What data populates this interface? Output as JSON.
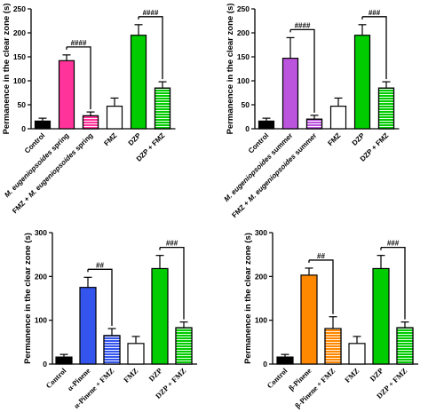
{
  "patterns": {
    "hatch_color": "#ffffff"
  },
  "chart_data": [
    {
      "type": "bar",
      "panel": "top-left",
      "ylabel": "Permanence in the clear zone (s)",
      "ylim": [
        0,
        250
      ],
      "yticks": [
        0,
        50,
        100,
        150,
        200,
        250
      ],
      "categories": [
        "Control",
        "M. eugeniopsoides spring",
        "FMZ + M. eugeniopsoides spring",
        "FMZ",
        "DZP",
        "DZP + FMZ"
      ],
      "category_italic_parts": [
        "",
        "M. eugeniopsoides",
        "M. eugeniopsoides",
        "",
        "",
        ""
      ],
      "values": [
        16,
        142,
        27,
        47,
        195,
        85
      ],
      "errors": [
        6,
        12,
        8,
        17,
        22,
        13
      ],
      "colors": [
        "#000000",
        "#ff3399",
        "#ff3399",
        "#ffffff",
        "#00cc00",
        "#00cc00"
      ],
      "hatched": [
        false,
        false,
        true,
        false,
        false,
        true
      ],
      "significance": [
        {
          "from": 1,
          "to": 2,
          "label": "####"
        },
        {
          "from": 4,
          "to": 5,
          "label": "####"
        }
      ]
    },
    {
      "type": "bar",
      "panel": "top-right",
      "ylabel": "Permanence in the clear zone (s)",
      "ylim": [
        0,
        250
      ],
      "yticks": [
        0,
        50,
        100,
        150,
        200,
        250
      ],
      "categories": [
        "Control",
        "M. eugeniopsoides summer",
        "FMZ + M. eugeniopsoides summer",
        "FMZ",
        "DZP",
        "DZP + FMZ"
      ],
      "category_italic_parts": [
        "",
        "M. eugeniopsoides",
        "M. eugeniopsoides",
        "",
        "",
        ""
      ],
      "values": [
        16,
        147,
        20,
        47,
        195,
        85
      ],
      "errors": [
        6,
        43,
        8,
        17,
        22,
        13
      ],
      "colors": [
        "#000000",
        "#bb55dd",
        "#bb55dd",
        "#ffffff",
        "#00cc00",
        "#00cc00"
      ],
      "hatched": [
        false,
        false,
        true,
        false,
        false,
        true
      ],
      "significance": [
        {
          "from": 1,
          "to": 2,
          "label": "####"
        },
        {
          "from": 4,
          "to": 5,
          "label": "###"
        }
      ]
    },
    {
      "type": "bar",
      "panel": "bottom-left",
      "ylabel": "Permanence in the clear zone (s)",
      "ylim": [
        0,
        300
      ],
      "yticks": [
        0,
        100,
        200,
        300
      ],
      "categories": [
        "Control",
        "α-Pinene",
        "α-Pinene + FMZ",
        "FMZ",
        "DZP",
        "DZP + FMZ"
      ],
      "category_italic_parts": [
        "",
        "",
        "",
        "",
        "",
        ""
      ],
      "values": [
        16,
        175,
        65,
        47,
        218,
        83
      ],
      "errors": [
        6,
        23,
        16,
        16,
        30,
        13
      ],
      "colors": [
        "#000000",
        "#3355ee",
        "#3355ee",
        "#ffffff",
        "#00cc00",
        "#00cc00"
      ],
      "hatched": [
        false,
        false,
        true,
        false,
        false,
        true
      ],
      "significance": [
        {
          "from": 1,
          "to": 2,
          "label": "##"
        },
        {
          "from": 4,
          "to": 5,
          "label": "###"
        }
      ]
    },
    {
      "type": "bar",
      "panel": "bottom-right",
      "ylabel": "Permanence in the clear zone (s)",
      "ylim": [
        0,
        300
      ],
      "yticks": [
        0,
        100,
        200,
        300
      ],
      "categories": [
        "Control",
        "β-Pinene",
        "β-Pinene + FMZ",
        "FMZ",
        "DZP",
        "DZP + FMZ"
      ],
      "category_italic_parts": [
        "",
        "",
        "",
        "",
        "",
        ""
      ],
      "values": [
        16,
        203,
        81,
        47,
        218,
        83
      ],
      "errors": [
        6,
        16,
        27,
        16,
        30,
        13
      ],
      "colors": [
        "#000000",
        "#ff8800",
        "#ff8800",
        "#ffffff",
        "#00cc00",
        "#00cc00"
      ],
      "hatched": [
        false,
        false,
        true,
        false,
        false,
        true
      ],
      "significance": [
        {
          "from": 1,
          "to": 2,
          "label": "##"
        },
        {
          "from": 4,
          "to": 5,
          "label": "###"
        }
      ]
    }
  ]
}
